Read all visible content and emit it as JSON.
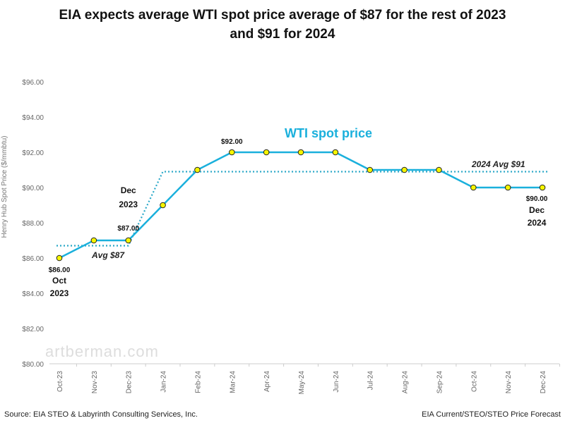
{
  "chart_data": {
    "type": "line",
    "title_line1": "EIA expects average WTI spot price average of $87 for the rest of 2023",
    "title_line2": "and $91 for 2024",
    "ylabel": "Henry Hub Spot Price ($/mmbtu)",
    "ylim": [
      80,
      96
    ],
    "yticks": [
      "$80.00",
      "$82.00",
      "$84.00",
      "$86.00",
      "$88.00",
      "$90.00",
      "$92.00",
      "$94.00",
      "$96.00"
    ],
    "categories": [
      "Oct-23",
      "Nov-23",
      "Dec-23",
      "Jan-24",
      "Feb-24",
      "Mar-24",
      "Apr-24",
      "May-24",
      "Jun-24",
      "Jul-24",
      "Aug-24",
      "Sep-24",
      "Oct-24",
      "Nov-24",
      "Dec-24"
    ],
    "series": [
      {
        "name": "WTI spot price",
        "values": [
          86,
          87,
          87,
          89,
          91,
          92,
          92,
          92,
          92,
          91,
          91,
          91,
          90,
          90,
          90
        ],
        "color": "#1ab0dc",
        "marker_color": "#f5f500"
      }
    ],
    "averages": [
      {
        "label": "Avg $87",
        "value": 86.7,
        "from": "Oct-23",
        "to": "Dec-23"
      },
      {
        "label": "2024 Avg $91",
        "value": 90.9,
        "from": "Jan-24",
        "to": "Dec-24"
      }
    ],
    "annotations": [
      {
        "category": "Oct-23",
        "lines": [
          "$86.00",
          "Oct",
          "2023"
        ]
      },
      {
        "category": "Mar-24",
        "lines": [
          "$92.00"
        ]
      },
      {
        "category": "Dec-23",
        "lines": [
          "Dec",
          "2023",
          "$87.00"
        ]
      },
      {
        "category": "Dec-24",
        "lines": [
          "$90.00",
          "Dec",
          "2024"
        ]
      }
    ],
    "grid": false
  },
  "watermark": "artberman.com",
  "footer": {
    "source": "Source: EIA STEO & Labyrinth Consulting Services, Inc.",
    "note": "EIA Current/STEO/STEO Price Forecast"
  }
}
